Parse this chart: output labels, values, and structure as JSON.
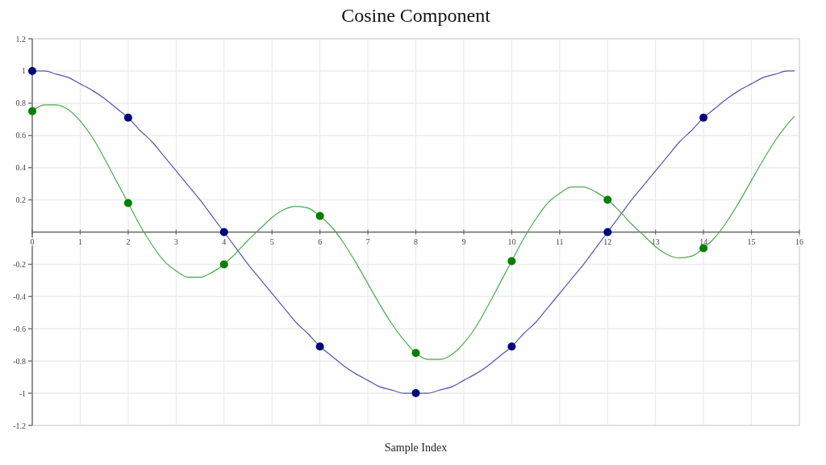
{
  "chart_data": {
    "type": "line",
    "title": "Cosine Component",
    "xlabel": "Sample Index",
    "x": [
      0,
      0.25,
      0.5,
      0.75,
      1,
      1.25,
      1.5,
      1.75,
      2,
      2.25,
      2.5,
      2.75,
      3,
      3.25,
      3.5,
      3.75,
      4,
      4.25,
      4.5,
      4.75,
      5,
      5.25,
      5.5,
      5.75,
      6,
      6.25,
      6.5,
      6.75,
      7,
      7.25,
      7.5,
      7.75,
      8,
      8.25,
      8.5,
      8.75,
      9,
      9.25,
      9.5,
      9.75,
      10,
      10.25,
      10.5,
      10.75,
      11,
      11.25,
      11.5,
      11.75,
      12,
      12.25,
      12.5,
      12.75,
      13,
      13.25,
      13.5,
      13.75,
      14,
      14.25,
      14.5,
      14.75,
      15,
      15.25,
      15.5,
      15.75,
      15.9
    ],
    "xlim": [
      0,
      16
    ],
    "xticks": [
      0,
      1,
      2,
      3,
      4,
      5,
      6,
      7,
      8,
      9,
      10,
      11,
      12,
      13,
      14,
      15,
      16
    ],
    "ylim": [
      -1.2,
      1.2
    ],
    "yticks": [
      -1.2,
      -1,
      -0.8,
      -0.6,
      -0.4,
      -0.2,
      0.2,
      0.4,
      0.6,
      0.8,
      1,
      1.2
    ],
    "grid": true,
    "marker": "circle",
    "series": [
      {
        "marker": "none",
        "color": "#5555b5",
        "values": [
          1,
          1,
          0.98,
          0.96,
          0.92,
          0.88,
          0.83,
          0.77,
          0.71,
          0.63,
          0.56,
          0.47,
          0.38,
          0.29,
          0.2,
          0.1,
          0,
          -0.1,
          -0.2,
          -0.29,
          -0.38,
          -0.47,
          -0.56,
          -0.63,
          -0.71,
          -0.77,
          -0.83,
          -0.88,
          -0.92,
          -0.96,
          -0.98,
          -1,
          -1,
          -1,
          -0.98,
          -0.96,
          -0.92,
          -0.88,
          -0.83,
          -0.77,
          -0.71,
          -0.63,
          -0.56,
          -0.47,
          -0.38,
          -0.29,
          -0.2,
          -0.1,
          0,
          0.1,
          0.2,
          0.29,
          0.38,
          0.47,
          0.56,
          0.63,
          0.71,
          0.77,
          0.83,
          0.88,
          0.92,
          0.96,
          0.98,
          1,
          1
        ]
      },
      {
        "marker": "none",
        "color": "#4caa4c",
        "values": [
          0.75,
          0.79,
          0.79,
          0.76,
          0.69,
          0.59,
          0.46,
          0.32,
          0.18,
          0.04,
          -0.08,
          -0.18,
          -0.24,
          -0.28,
          -0.28,
          -0.25,
          -0.2,
          -0.13,
          -0.05,
          0.02,
          0.09,
          0.14,
          0.16,
          0.15,
          0.1,
          0.03,
          -0.07,
          -0.19,
          -0.32,
          -0.45,
          -0.57,
          -0.67,
          -0.75,
          -0.79,
          -0.79,
          -0.76,
          -0.69,
          -0.59,
          -0.46,
          -0.32,
          -0.18,
          -0.04,
          0.08,
          0.18,
          0.24,
          0.28,
          0.28,
          0.25,
          0.2,
          0.13,
          0.05,
          -0.02,
          -0.09,
          -0.14,
          -0.16,
          -0.15,
          -0.1,
          -0.03,
          0.07,
          0.19,
          0.32,
          0.45,
          0.57,
          0.67,
          0.72
        ]
      },
      {
        "type": "scatter",
        "color": "#000080",
        "x": [
          0,
          2,
          4,
          6,
          8,
          10,
          12,
          14
        ],
        "values": [
          1,
          0.71,
          0,
          -0.71,
          -1,
          -0.71,
          0,
          0.71
        ]
      },
      {
        "type": "scatter",
        "color": "#008000",
        "x": [
          0,
          2,
          4,
          6,
          8,
          10,
          12,
          14
        ],
        "values": [
          0.75,
          0.18,
          -0.2,
          0.1,
          -0.75,
          -0.18,
          0.2,
          -0.1
        ]
      }
    ]
  }
}
